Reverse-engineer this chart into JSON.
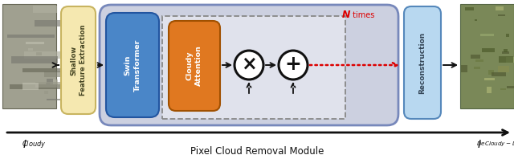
{
  "fig_width": 6.4,
  "fig_height": 1.93,
  "dpi": 100,
  "bg_color": "#ffffff",
  "title_text": "Pixel Cloud Removal Module",
  "title_fontsize": 8.5,
  "shallow_text": "Shallow\nFeature Extraction",
  "swin_text": "Swin\nTransformer",
  "cloudy_attn_text": "Cloudy\nAttention",
  "recon_text": "Reconstruction",
  "n_bold": "N",
  "n_rest": " times",
  "shallow_color": "#f5e8b0",
  "shallow_border": "#c8b460",
  "swin_color": "#4a86c8",
  "swin_border": "#2255a0",
  "cloudy_attn_color": "#e07820",
  "cloudy_attn_border": "#a05000",
  "recon_color": "#b8d8f0",
  "recon_border": "#5588bb",
  "outer_fill": "#ccd0e0",
  "outer_border": "#7788bb",
  "inner_dashed_color": "#888888",
  "inner_dashed_fill": "#e0e2ec",
  "arrow_color": "#111111",
  "red_dot_color": "#dd0000",
  "circle_color": "#111111",
  "circle_fill": "#ffffff",
  "text_color": "#111111",
  "white": "#ffffff"
}
